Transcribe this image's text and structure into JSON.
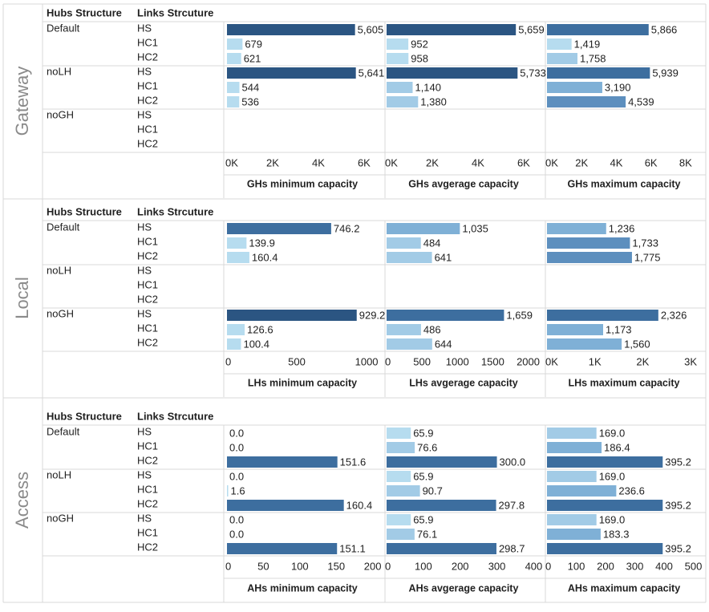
{
  "labels": {
    "hubs_structure": "Hubs Structure",
    "links_structure": "Links Strcuture"
  },
  "colors": {
    "scale": [
      "#b6dcef",
      "#a2cbe6",
      "#7fb0d6",
      "#5d8fbe",
      "#3d6e9f",
      "#2b5582"
    ],
    "grid": "#d9d9d9",
    "text": "#1f1f1f",
    "tick": "#222222",
    "section_label": "#8a8a8a"
  },
  "chart_data": [
    {
      "type": "bar",
      "section": "Gateway",
      "hubs": [
        "Default",
        "noLH",
        "noGH"
      ],
      "links": [
        "HS",
        "HC1",
        "HC2"
      ],
      "panels": [
        {
          "title": "GHs minimum capacity",
          "xlim": [
            0,
            6600
          ],
          "ticks": [
            0,
            2000,
            4000,
            6000
          ],
          "tick_labels": [
            "0K",
            "2K",
            "4K",
            "6K"
          ],
          "values": [
            [
              5605,
              679,
              621
            ],
            [
              5641,
              544,
              536
            ],
            [
              null,
              null,
              null
            ]
          ],
          "labels": [
            [
              "5,605",
              "679",
              "621"
            ],
            [
              "5,641",
              "544",
              "536"
            ],
            [
              "",
              "",
              ""
            ]
          ]
        },
        {
          "title": "GHs avgerage capacity",
          "xlim": [
            0,
            6600
          ],
          "ticks": [
            0,
            2000,
            4000,
            6000
          ],
          "tick_labels": [
            "0K",
            "2K",
            "4K",
            "6K"
          ],
          "values": [
            [
              5659,
              952,
              958
            ],
            [
              5733,
              1140,
              1380
            ],
            [
              null,
              null,
              null
            ]
          ],
          "labels": [
            [
              "5,659",
              "952",
              "958"
            ],
            [
              "5,733",
              "1,140",
              "1,380"
            ],
            [
              "",
              "",
              ""
            ]
          ]
        },
        {
          "title": "GHs maximum capacity",
          "xlim": [
            0,
            8700
          ],
          "ticks": [
            0,
            2000,
            4000,
            6000,
            8000
          ],
          "tick_labels": [
            "0K",
            "2K",
            "4K",
            "6K",
            "8K"
          ],
          "values": [
            [
              5866,
              1419,
              1758
            ],
            [
              5939,
              3190,
              4539
            ],
            [
              null,
              null,
              null
            ]
          ],
          "labels": [
            [
              "5,866",
              "1,419",
              "1,758"
            ],
            [
              "5,939",
              "3,190",
              "4,539"
            ],
            [
              "",
              "",
              ""
            ]
          ]
        }
      ]
    },
    {
      "type": "bar",
      "section": "Local",
      "hubs": [
        "Default",
        "noLH",
        "noGH"
      ],
      "links": [
        "HS",
        "HC1",
        "HC2"
      ],
      "panels": [
        {
          "title": "LHs minimum capacity",
          "xlim": [
            0,
            1080
          ],
          "ticks": [
            0,
            500,
            1000
          ],
          "tick_labels": [
            "0",
            "500",
            "1000"
          ],
          "values": [
            [
              746.2,
              139.9,
              160.4
            ],
            [
              null,
              null,
              null
            ],
            [
              929.2,
              126.6,
              100.4
            ]
          ],
          "labels": [
            [
              "746.2",
              "139.9",
              "160.4"
            ],
            [
              "",
              "",
              ""
            ],
            [
              "929.2",
              "126.6",
              "100.4"
            ]
          ]
        },
        {
          "title": "LHs avgerage capacity",
          "xlim": [
            0,
            2130
          ],
          "ticks": [
            0,
            500,
            1000,
            1500,
            2000
          ],
          "tick_labels": [
            "0",
            "500",
            "1000",
            "1500",
            "2000"
          ],
          "values": [
            [
              1035,
              484,
              641
            ],
            [
              null,
              null,
              null
            ],
            [
              1659,
              486,
              644
            ]
          ],
          "labels": [
            [
              "1,035",
              "484",
              "641"
            ],
            [
              "",
              "",
              ""
            ],
            [
              "1,659",
              "486",
              "644"
            ]
          ]
        },
        {
          "title": "LHs maximum capacity",
          "xlim": [
            0,
            3150
          ],
          "ticks": [
            0,
            1000,
            2000,
            3000
          ],
          "tick_labels": [
            "0K",
            "1K",
            "2K",
            "3K"
          ],
          "values": [
            [
              1236,
              1733,
              1775
            ],
            [
              null,
              null,
              null
            ],
            [
              2326,
              1173,
              1560
            ]
          ],
          "labels": [
            [
              "1,236",
              "1,733",
              "1,775"
            ],
            [
              "",
              "",
              ""
            ],
            [
              "2,326",
              "1,173",
              "1,560"
            ]
          ]
        }
      ]
    },
    {
      "type": "bar",
      "section": "Access",
      "hubs": [
        "Default",
        "noLH",
        "noGH"
      ],
      "links": [
        "HS",
        "HC1",
        "HC2"
      ],
      "panels": [
        {
          "title": "AHs minimum capacity",
          "xlim": [
            0,
            207
          ],
          "ticks": [
            0,
            50,
            100,
            150,
            200
          ],
          "tick_labels": [
            "0",
            "50",
            "100",
            "150",
            "200"
          ],
          "values": [
            [
              0.0,
              0.0,
              151.6
            ],
            [
              0.0,
              1.6,
              160.4
            ],
            [
              0.0,
              0.0,
              151.1
            ]
          ],
          "labels": [
            [
              "0.0",
              "0.0",
              "151.6"
            ],
            [
              "0.0",
              "1.6",
              "160.4"
            ],
            [
              "0.0",
              "0.0",
              "151.1"
            ]
          ]
        },
        {
          "title": "AHs avgerage capacity",
          "xlim": [
            0,
            410
          ],
          "ticks": [
            0,
            100,
            200,
            300,
            400
          ],
          "tick_labels": [
            "0",
            "100",
            "200",
            "300",
            "400"
          ],
          "values": [
            [
              65.9,
              76.6,
              300.0
            ],
            [
              65.9,
              90.7,
              297.8
            ],
            [
              65.9,
              76.1,
              298.7
            ]
          ],
          "labels": [
            [
              "65.9",
              "76.6",
              "300.0"
            ],
            [
              "65.9",
              "90.7",
              "297.8"
            ],
            [
              "65.9",
              "76.1",
              "298.7"
            ]
          ]
        },
        {
          "title": "AHs maximum capacity",
          "xlim": [
            0,
            515
          ],
          "ticks": [
            0,
            100,
            200,
            300,
            400,
            500
          ],
          "tick_labels": [
            "0",
            "100",
            "200",
            "300",
            "400",
            "500"
          ],
          "values": [
            [
              169.0,
              186.4,
              395.2
            ],
            [
              169.0,
              236.6,
              395.2
            ],
            [
              169.0,
              183.3,
              395.2
            ]
          ],
          "labels": [
            [
              "169.0",
              "186.4",
              "395.2"
            ],
            [
              "169.0",
              "236.6",
              "395.2"
            ],
            [
              "169.0",
              "183.3",
              "395.2"
            ]
          ]
        }
      ]
    }
  ]
}
